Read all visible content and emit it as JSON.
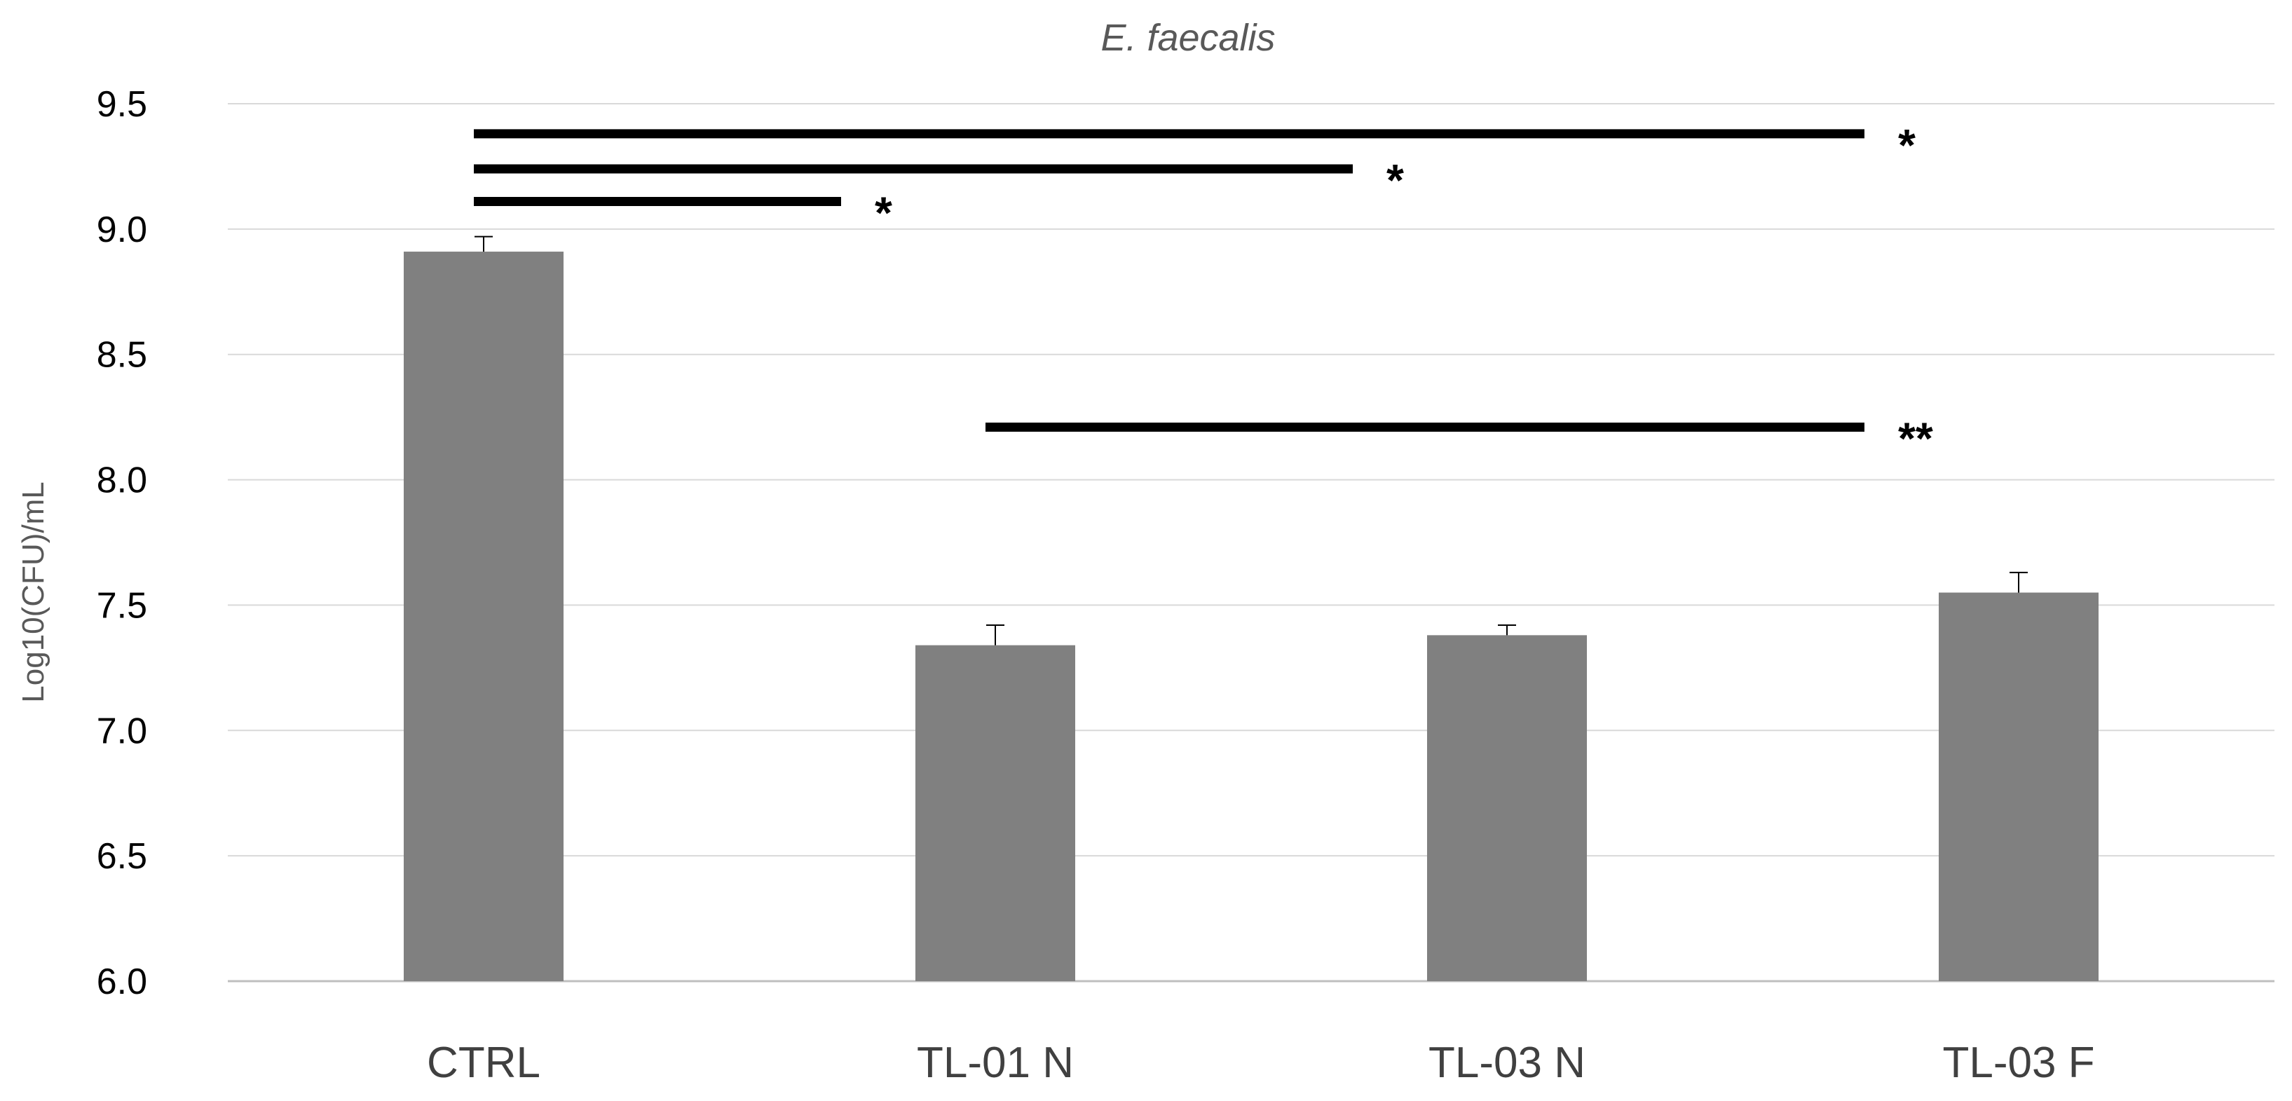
{
  "chart_data": {
    "type": "bar",
    "title": "E. faecalis",
    "xlabel": "",
    "ylabel": "Log10(CFU)/mL",
    "ylim": [
      6.0,
      9.5
    ],
    "yticks": [
      "6.0",
      "6.5",
      "7.0",
      "7.5",
      "8.0",
      "8.5",
      "9.0",
      "9.5"
    ],
    "grid": true,
    "categories": [
      "CTRL",
      "TL-01 N",
      "TL-03 N",
      "TL-03 F"
    ],
    "series": [
      {
        "name": "Log10(CFU)/mL",
        "values": [
          8.91,
          7.34,
          7.38,
          7.55
        ],
        "errors": [
          0.06,
          0.08,
          0.04,
          0.08
        ],
        "color": "#808080"
      }
    ],
    "significance": [
      {
        "from": "CTRL",
        "to": "TL-01 N",
        "level": 9.11,
        "label": "*"
      },
      {
        "from": "CTRL",
        "to": "TL-03 N",
        "level": 9.24,
        "label": "*"
      },
      {
        "from": "CTRL",
        "to": "TL-03 F",
        "level": 9.38,
        "label": "*"
      },
      {
        "from": "TL-01 N",
        "to": "TL-03 F",
        "level": 8.21,
        "label": "**"
      }
    ]
  }
}
